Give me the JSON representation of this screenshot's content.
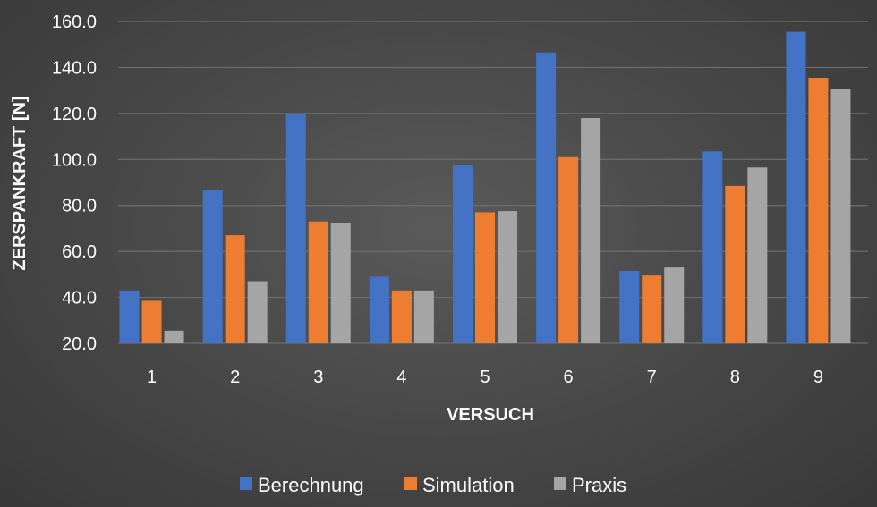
{
  "colors": {
    "background": "#4a4a4a",
    "grid": "#6e6e6e",
    "text": "#ffffff"
  },
  "chart_data": {
    "type": "bar",
    "xlabel": "VERSUCH",
    "ylabel": "ZERSPANKRAFT [N]",
    "ylim": [
      20,
      160
    ],
    "ytick_step": 20,
    "ytick_labels": [
      "20.0",
      "40.0",
      "60.0",
      "80.0",
      "100.0",
      "120.0",
      "140.0",
      "160.0"
    ],
    "grid": true,
    "legend_position": "bottom",
    "categories": [
      "1",
      "2",
      "3",
      "4",
      "5",
      "6",
      "7",
      "8",
      "9"
    ],
    "series": [
      {
        "name": "Berechnung",
        "color": "#4472c4",
        "values": [
          43,
          86.5,
          120,
          49,
          97.5,
          146.5,
          51.5,
          103.5,
          155.5
        ]
      },
      {
        "name": "Simulation",
        "color": "#ed7d31",
        "values": [
          38.5,
          67,
          73,
          43,
          77,
          101,
          49.5,
          88.5,
          135.5
        ]
      },
      {
        "name": "Praxis",
        "color": "#a5a5a5",
        "values": [
          25.5,
          47,
          72.5,
          43,
          77.5,
          118,
          53,
          96.5,
          130.5
        ]
      }
    ]
  }
}
